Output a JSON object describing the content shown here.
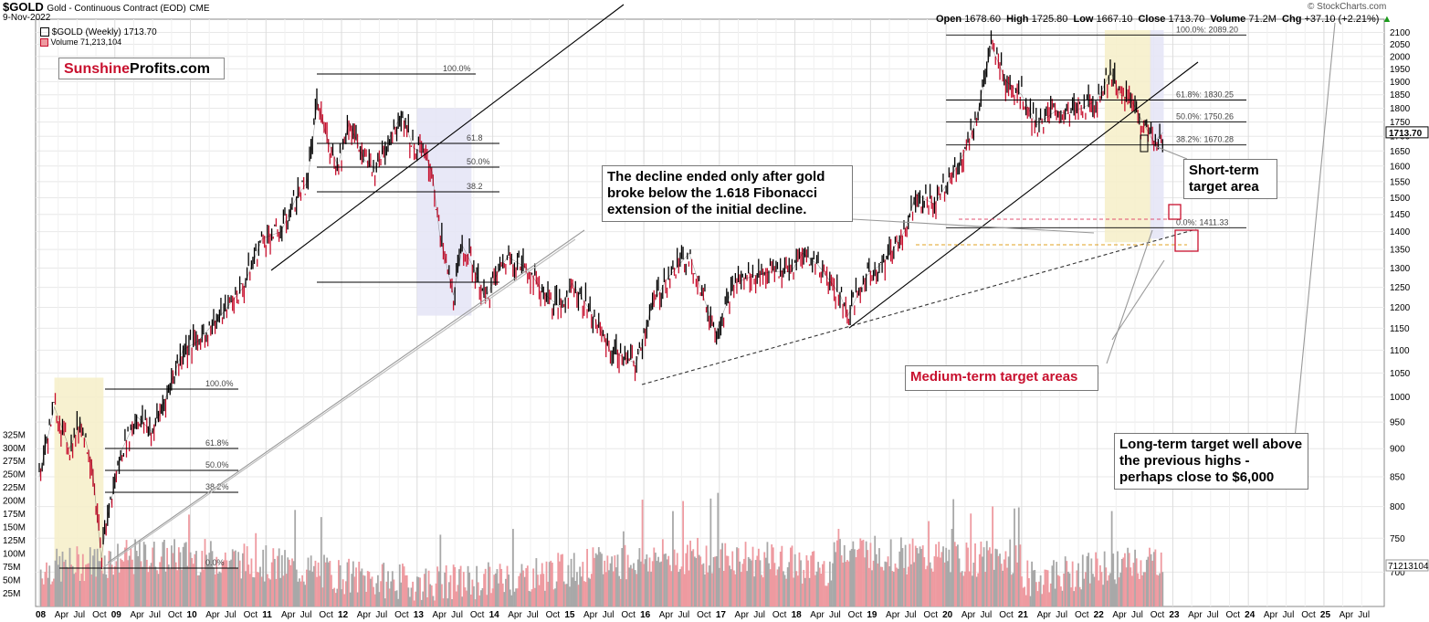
{
  "header": {
    "symbol": "$GOLD",
    "description": "Gold - Continuous Contract (EOD)",
    "exchange": "CME",
    "date": "9-Nov-2022",
    "open_label": "Open",
    "open": "1678.60",
    "high_label": "High",
    "high": "1725.80",
    "low_label": "Low",
    "low": "1667.10",
    "close_label": "Close",
    "close": "1713.70",
    "volume_label": "Volume",
    "volume": "71.2M",
    "chg_label": "Chg",
    "chg": "+37.10 (+2.21%)",
    "copyright": "© StockCharts.com"
  },
  "legend": {
    "price": "$GOLD (Weekly) 1713.70",
    "volume": "Volume 71,213,104"
  },
  "logo": {
    "part1": "Sunshine",
    "part2": "Profits.com"
  },
  "annotations": {
    "decline_note": "The decline ended only after gold broke below the 1.618 Fibonacci extension of the initial decline.",
    "short_term": "Short-term target area",
    "medium_term": "Medium-term target areas",
    "long_term": "Long-term target well above the previous highs - perhaps close to $6,000"
  },
  "colors": {
    "up_candle": "#000000",
    "down_candle": "#c8102e",
    "volume_bar": "#ee9aa0",
    "volume_bar_alt": "#a8a8a8",
    "accent_red": "#c8102e",
    "highlight_yellow": "#f6efc8",
    "highlight_blue": "#e4e4f6"
  },
  "chart_data": {
    "type": "line",
    "title": "$GOLD Gold - Continuous Contract (EOD) CME",
    "x_ticks": [
      "08",
      "Apr",
      "Jul",
      "Oct",
      "09",
      "Apr",
      "Jul",
      "Oct",
      "10",
      "Apr",
      "Jul",
      "Oct",
      "11",
      "Apr",
      "Jul",
      "Oct",
      "12",
      "Apr",
      "Jul",
      "Oct",
      "13",
      "Apr",
      "Jul",
      "Oct",
      "14",
      "Apr",
      "Jul",
      "Oct",
      "15",
      "Apr",
      "Jul",
      "Oct",
      "16",
      "Apr",
      "Jul",
      "Oct",
      "17",
      "Apr",
      "Jul",
      "Oct",
      "18",
      "Apr",
      "Jul",
      "Oct",
      "19",
      "Apr",
      "Jul",
      "Oct",
      "20",
      "Apr",
      "Jul",
      "Oct",
      "21",
      "Apr",
      "Jul",
      "Oct",
      "22",
      "Apr",
      "Jul",
      "Oct",
      "23",
      "Apr",
      "Jul",
      "Oct",
      "24",
      "Apr",
      "Jul",
      "Oct",
      "25",
      "Apr",
      "Jul"
    ],
    "x_start": 2008.0,
    "x_end": 2025.75,
    "price_axis_ticks": [
      700,
      750,
      800,
      850,
      900,
      950,
      1000,
      1050,
      1100,
      1150,
      1200,
      1250,
      1300,
      1350,
      1400,
      1450,
      1500,
      1550,
      1600,
      1650,
      1700,
      1750,
      1800,
      1850,
      1900,
      1950,
      2000,
      2050,
      2100
    ],
    "price_scale": "log",
    "ylim": [
      680,
      2110
    ],
    "last_price_label": "1713.70",
    "volume_axis_ticks": [
      "25M",
      "50M",
      "75M",
      "100M",
      "125M",
      "150M",
      "175M",
      "200M",
      "225M",
      "250M",
      "275M",
      "300M",
      "325M"
    ],
    "volume_last_label": "71213104",
    "series": [
      {
        "name": "$GOLD (Weekly)",
        "x": [
          2008.0,
          2008.2,
          2008.4,
          2008.55,
          2008.7,
          2008.82,
          2008.9,
          2009.1,
          2009.3,
          2009.5,
          2009.7,
          2009.9,
          2010.1,
          2010.4,
          2010.7,
          2010.95,
          2011.2,
          2011.4,
          2011.55,
          2011.68,
          2011.8,
          2011.95,
          2012.1,
          2012.3,
          2012.45,
          2012.6,
          2012.8,
          2012.95,
          2013.1,
          2013.2,
          2013.3,
          2013.48,
          2013.6,
          2013.75,
          2013.9,
          2014.1,
          2014.2,
          2014.45,
          2014.7,
          2014.9,
          2015.05,
          2015.3,
          2015.55,
          2015.9,
          2016.1,
          2016.3,
          2016.6,
          2016.8,
          2016.95,
          2017.2,
          2017.45,
          2017.7,
          2017.95,
          2018.1,
          2018.3,
          2018.6,
          2018.7,
          2018.95,
          2019.2,
          2019.45,
          2019.6,
          2019.85,
          2020.1,
          2020.25,
          2020.4,
          2020.6,
          2020.8,
          2021.0,
          2021.2,
          2021.45,
          2021.6,
          2021.8,
          2022.0,
          2022.18,
          2022.3,
          2022.45,
          2022.6,
          2022.75,
          2022.87
        ],
        "values": [
          850,
          980,
          900,
          950,
          870,
          720,
          780,
          900,
          960,
          930,
          1010,
          1100,
          1120,
          1180,
          1250,
          1380,
          1400,
          1500,
          1550,
          1820,
          1700,
          1600,
          1750,
          1620,
          1590,
          1680,
          1780,
          1660,
          1640,
          1580,
          1390,
          1230,
          1360,
          1300,
          1220,
          1300,
          1330,
          1300,
          1230,
          1200,
          1260,
          1190,
          1100,
          1070,
          1200,
          1270,
          1340,
          1220,
          1140,
          1260,
          1280,
          1290,
          1290,
          1340,
          1310,
          1230,
          1180,
          1280,
          1320,
          1400,
          1510,
          1480,
          1580,
          1650,
          1760,
          2040,
          1900,
          1850,
          1740,
          1790,
          1780,
          1800,
          1830,
          1940,
          1850,
          1830,
          1750,
          1680,
          1713.7
        ]
      }
    ],
    "fibonacci": [
      {
        "level": "100.0%",
        "price": 2089.2
      },
      {
        "level": "61.8%",
        "price": 1830.25
      },
      {
        "level": "50.0%",
        "price": 1750.26
      },
      {
        "level": "38.2%",
        "price": 1670.28
      },
      {
        "level": "0.0%",
        "price": 1411.33
      }
    ],
    "left_fib_labels": [
      "100.0%",
      "61.8",
      "50.0%",
      "38.2",
      "100.0%",
      "61.8%",
      "50.0%",
      "38.2%",
      "0.0%"
    ],
    "grid": true,
    "legend_position": "top-left"
  }
}
